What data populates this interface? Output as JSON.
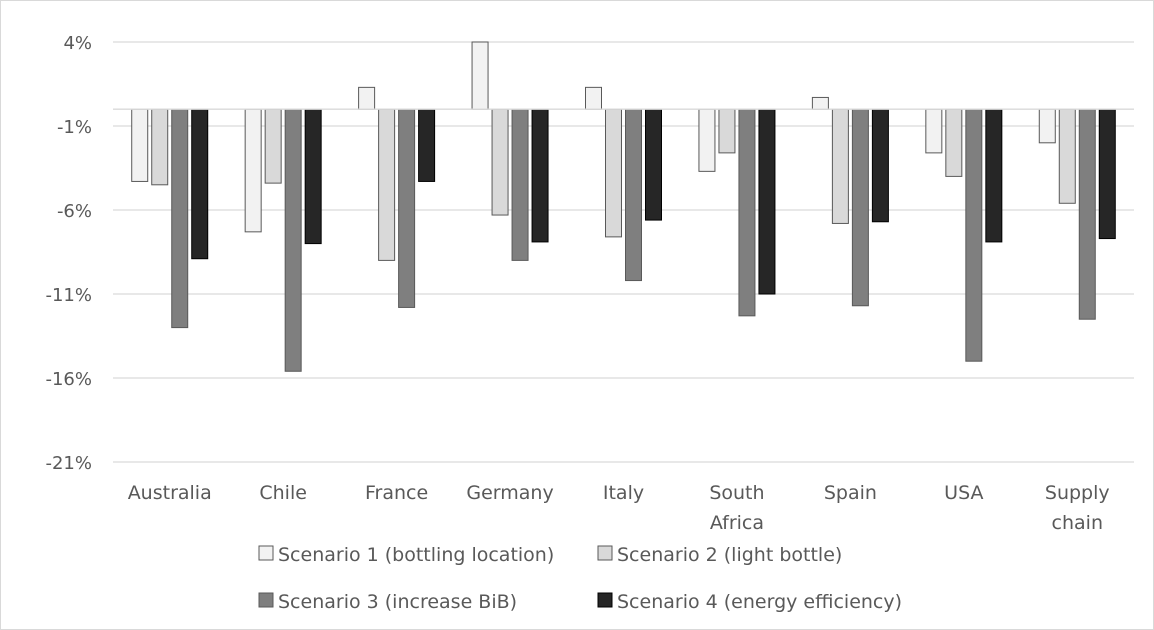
{
  "chart_data": {
    "type": "bar",
    "title": "",
    "xlabel": "",
    "ylabel": "",
    "ylim": [
      -21,
      4
    ],
    "yticks": [
      4,
      -1,
      -6,
      -11,
      -16,
      -21
    ],
    "ytick_labels": [
      "4%",
      "-1%",
      "-6%",
      "-11%",
      "-16%",
      "-21%"
    ],
    "grid": true,
    "legend_position": "bottom",
    "categories": [
      [
        "Australia"
      ],
      [
        "Chile"
      ],
      [
        "France"
      ],
      [
        "Germany"
      ],
      [
        "Italy"
      ],
      [
        "South",
        "Africa"
      ],
      [
        "Spain"
      ],
      [
        "USA"
      ],
      [
        "Supply",
        "chain"
      ]
    ],
    "series": [
      {
        "name": "Scenario 1 (bottling location)",
        "color": "#f2f2f2",
        "values": [
          -4.3,
          -7.3,
          1.3,
          4.0,
          1.3,
          -3.7,
          0.7,
          -2.6,
          -2.0
        ]
      },
      {
        "name": "Scenario 2 (light bottle)",
        "color": "#d9d9d9",
        "values": [
          -4.5,
          -4.4,
          -9.0,
          -6.3,
          -7.6,
          -2.6,
          -6.8,
          -4.0,
          -5.6
        ]
      },
      {
        "name": "Scenario 3 (increase BiB)",
        "color": "#7f7f7f",
        "values": [
          -13.0,
          -15.6,
          -11.8,
          -9.0,
          -10.2,
          -12.3,
          -11.7,
          -15.0,
          -12.5
        ]
      },
      {
        "name": "Scenario 4 (energy efficiency)",
        "color": "#262626",
        "values": [
          -8.9,
          -8.0,
          -4.3,
          -7.9,
          -6.6,
          -11.0,
          -6.7,
          -7.9,
          -7.7
        ]
      }
    ]
  }
}
